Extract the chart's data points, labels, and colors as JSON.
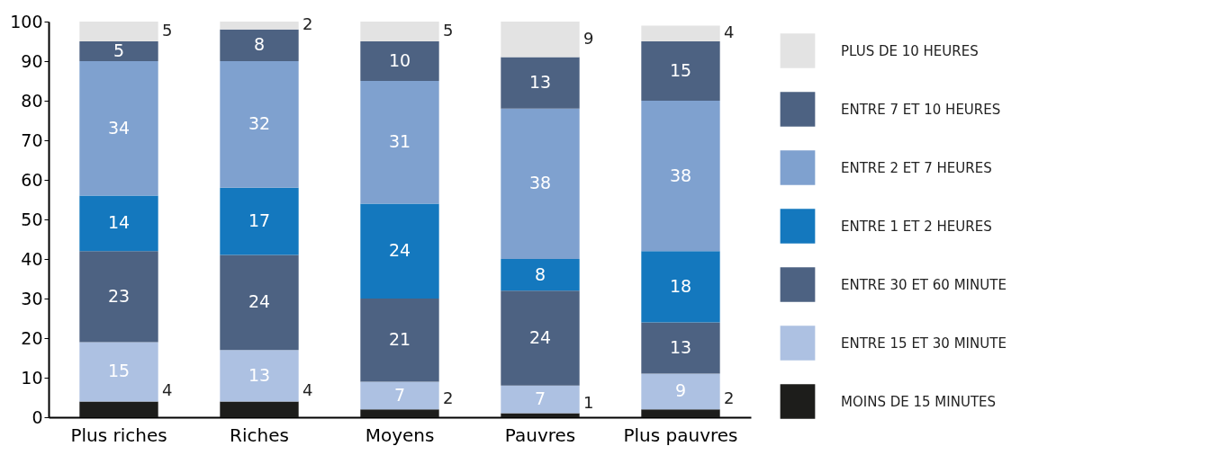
{
  "chart_data": {
    "type": "bar",
    "stacked": true,
    "categories": [
      "Plus riches",
      "Riches",
      "Moyens",
      "Pauvres",
      "Plus pauvres"
    ],
    "series": [
      {
        "name": "MOINS DE 15 MINUTES",
        "color": "#1d1d1b",
        "values": [
          4,
          4,
          2,
          1,
          2
        ]
      },
      {
        "name": "ENTRE 15 ET 30 MINUTE",
        "color": "#adc1e2",
        "values": [
          15,
          13,
          7,
          7,
          9
        ]
      },
      {
        "name": "ENTRE 30 ET 60 MINUTE",
        "color": "#4d6282",
        "values": [
          23,
          24,
          21,
          24,
          13
        ]
      },
      {
        "name": "ENTRE 1 ET 2 HEURES",
        "color": "#1478be",
        "values": [
          14,
          17,
          24,
          8,
          18
        ]
      },
      {
        "name": "ENTRE 2 ET 7 HEURES",
        "color": "#7fa1cf",
        "values": [
          34,
          32,
          31,
          38,
          38
        ]
      },
      {
        "name": "ENTRE 7 ET 10 HEURES",
        "color": "#4d6282",
        "values": [
          5,
          8,
          10,
          13,
          15
        ]
      },
      {
        "name": "PLUS DE 10 HEURES",
        "color": "#e3e3e3",
        "values": [
          5,
          2,
          5,
          9,
          4
        ]
      }
    ],
    "ylim": [
      0,
      100
    ],
    "yticks": [
      0,
      10,
      20,
      30,
      40,
      50,
      60,
      70,
      80,
      90,
      100
    ],
    "data_labels": true,
    "legend": "right",
    "grid": false
  }
}
